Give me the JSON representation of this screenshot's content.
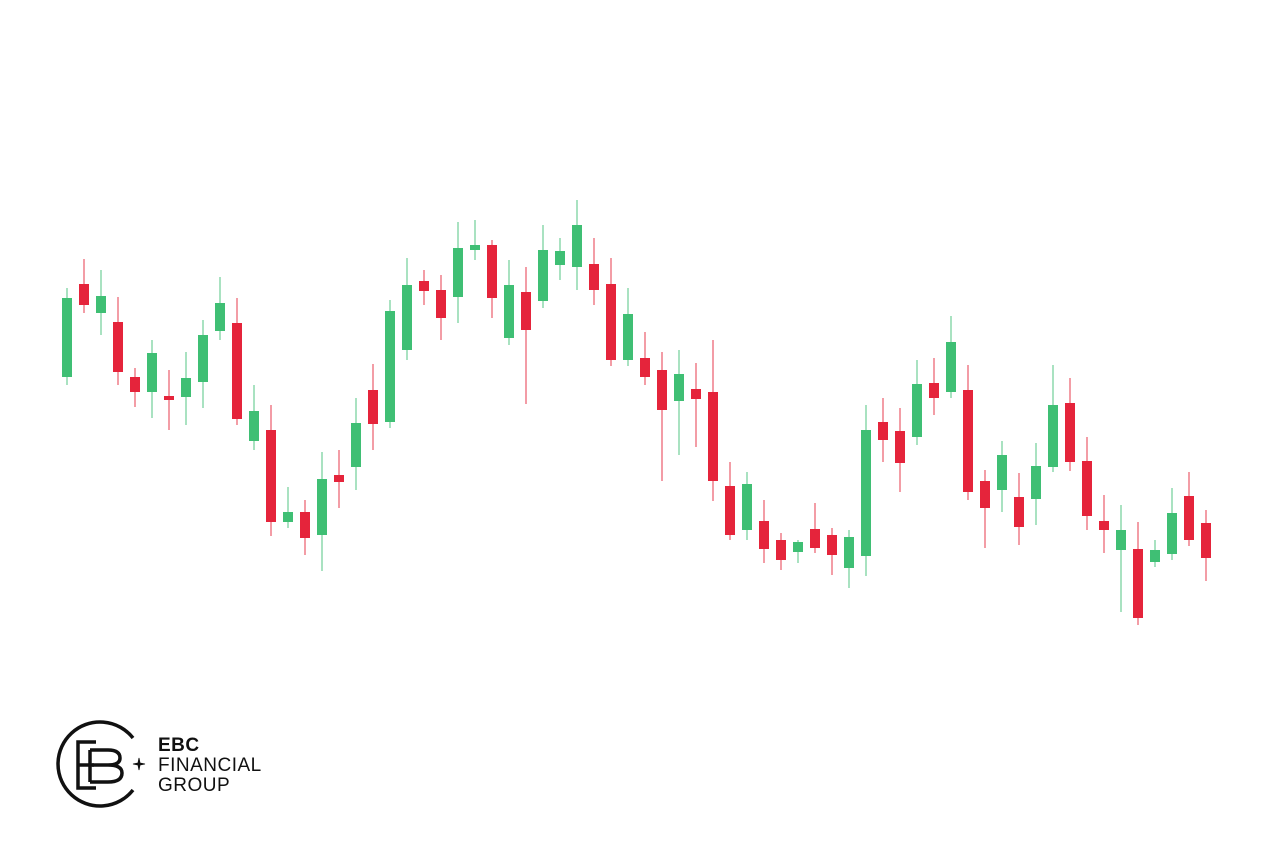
{
  "chart_data": {
    "type": "candlestick",
    "up_color": "#3fbf74",
    "down_color": "#e5243b",
    "ylim": [
      0,
      854
    ],
    "open": [
      477,
      570,
      541,
      532,
      477,
      462,
      458,
      457,
      472,
      523,
      531,
      413,
      424,
      332,
      342,
      319,
      379,
      387,
      464,
      432,
      504,
      573,
      564,
      557,
      604,
      609,
      516,
      562,
      553,
      589,
      587,
      590,
      570,
      494,
      496,
      484,
      453,
      465,
      462,
      368,
      324,
      333,
      314,
      302,
      325,
      319,
      286,
      298,
      432,
      423,
      417,
      471,
      462,
      464,
      373,
      364,
      357,
      355,
      387,
      451,
      393,
      333,
      304,
      305,
      292,
      300,
      358,
      331
    ],
    "high": [
      566,
      595,
      584,
      557,
      486,
      514,
      484,
      502,
      534,
      577,
      556,
      469,
      449,
      367,
      354,
      402,
      404,
      456,
      490,
      554,
      596,
      584,
      579,
      632,
      634,
      614,
      594,
      587,
      629,
      616,
      654,
      616,
      596,
      566,
      522,
      502,
      504,
      491,
      514,
      392,
      382,
      354,
      321,
      314,
      351,
      326,
      324,
      449,
      456,
      446,
      494,
      496,
      538,
      489,
      384,
      413,
      381,
      411,
      489,
      476,
      417,
      359,
      349,
      332,
      314,
      366,
      382,
      344
    ],
    "low": [
      469,
      541,
      519,
      469,
      447,
      436,
      424,
      429,
      446,
      514,
      429,
      404,
      318,
      326,
      299,
      283,
      346,
      364,
      404,
      426,
      494,
      549,
      514,
      531,
      594,
      536,
      509,
      450,
      546,
      574,
      564,
      549,
      488,
      488,
      469,
      373,
      399,
      407,
      353,
      314,
      314,
      291,
      284,
      291,
      301,
      279,
      266,
      278,
      392,
      362,
      409,
      439,
      456,
      354,
      306,
      342,
      309,
      329,
      382,
      383,
      324,
      301,
      242,
      229,
      287,
      294,
      308,
      273
    ],
    "close": [
      556,
      549,
      558,
      482,
      462,
      501,
      454,
      476,
      519,
      551,
      435,
      443,
      332,
      342,
      316,
      375,
      372,
      431,
      430,
      543,
      569,
      563,
      536,
      606,
      609,
      556,
      569,
      524,
      604,
      603,
      629,
      564,
      494,
      540,
      477,
      444,
      480,
      455,
      373,
      319,
      370,
      305,
      294,
      312,
      306,
      299,
      317,
      424,
      414,
      391,
      470,
      456,
      512,
      362,
      346,
      399,
      327,
      388,
      449,
      392,
      338,
      324,
      324,
      236,
      304,
      341,
      314,
      296
    ]
  },
  "logo": {
    "line1": "EBC",
    "line2": "FINANCIAL",
    "line3": "GROUP"
  }
}
